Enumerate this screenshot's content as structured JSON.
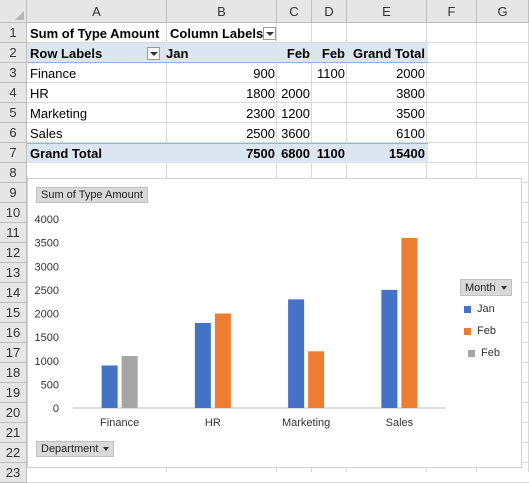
{
  "columns": [
    "A",
    "B",
    "C",
    "D",
    "E",
    "F",
    "G"
  ],
  "rows": [
    "1",
    "2",
    "3",
    "4",
    "5",
    "6",
    "7",
    "8",
    "9",
    "10",
    "11",
    "12",
    "13",
    "14",
    "15",
    "16",
    "17",
    "18",
    "19",
    "20",
    "21",
    "22",
    "23"
  ],
  "pivot": {
    "header1": {
      "value_label": "Sum of Type Amount",
      "column_labels": "Column Labels"
    },
    "header2": {
      "row_labels": "Row Labels",
      "cols": [
        "Jan",
        "Feb",
        "Feb"
      ],
      "grand_total": "Grand Total"
    },
    "body": [
      {
        "label": "Finance",
        "values": [
          "900",
          "",
          "1100"
        ],
        "total": "2000"
      },
      {
        "label": "HR",
        "values": [
          "1800",
          "2000",
          ""
        ],
        "total": "3800"
      },
      {
        "label": "Marketing",
        "values": [
          "2300",
          "1200",
          ""
        ],
        "total": "3500"
      },
      {
        "label": "Sales",
        "values": [
          "2500",
          "3600",
          ""
        ],
        "total": "6100"
      }
    ],
    "grand_total": {
      "label": "Grand Total",
      "values": [
        "7500",
        "6800",
        "1100"
      ],
      "total": "15400"
    }
  },
  "chart_field_buttons": {
    "values": "Sum of Type Amount",
    "axis": "Department",
    "legend": "Month"
  },
  "chart_data": {
    "type": "bar",
    "categories": [
      "Finance",
      "HR",
      "Marketing",
      "Sales"
    ],
    "series": [
      {
        "name": "Jan",
        "color": "#4472c4",
        "values": [
          900,
          1800,
          2300,
          2500
        ]
      },
      {
        "name": "Feb",
        "color": "#ed7d31",
        "values": [
          null,
          2000,
          1200,
          3600
        ]
      },
      {
        "name": "Feb",
        "color": "#a5a5a5",
        "values": [
          1100,
          null,
          null,
          null
        ]
      }
    ],
    "ylim": [
      0,
      4000
    ],
    "yticks": [
      0,
      500,
      1000,
      1500,
      2000,
      2500,
      3000,
      3500,
      4000
    ],
    "grid": false,
    "legend": "right"
  }
}
